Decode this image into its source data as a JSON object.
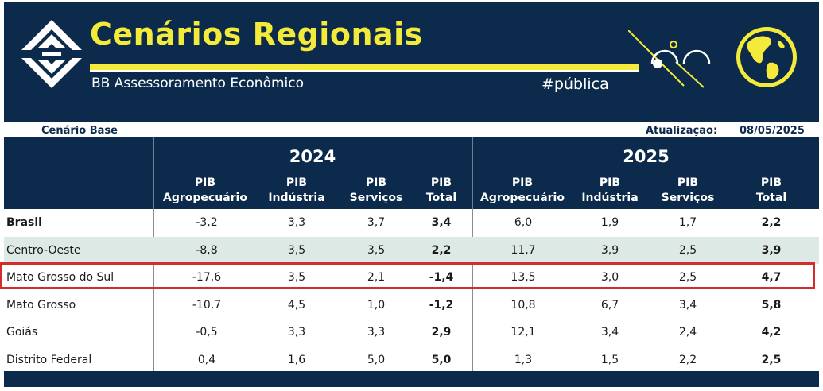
{
  "header": {
    "title": "Cenários Regionais",
    "subtitle": "BB Assessoramento Econômico",
    "hashtag": "#pública",
    "logo_icon": "bb-logo-icon",
    "globe_icon": "globe-icon",
    "accent_color": "#f4ea3a",
    "banner_color": "#0c2a4b"
  },
  "meta": {
    "scenario": "Cenário Base",
    "updated_label": "Atualização:",
    "updated_value": "08/05/2025"
  },
  "table": {
    "years": [
      "2024",
      "2025"
    ],
    "columns": [
      {
        "line1": "PIB",
        "line2": "Agropecuário"
      },
      {
        "line1": "PIB",
        "line2": "Indústria"
      },
      {
        "line1": "PIB",
        "line2": "Serviços"
      },
      {
        "line1": "PIB",
        "line2": "Total"
      },
      {
        "line1": "PIB",
        "line2": "Agropecuário"
      },
      {
        "line1": "PIB",
        "line2": "Indústria"
      },
      {
        "line1": "PIB",
        "line2": "Serviços"
      },
      {
        "line1": "PIB",
        "line2": "Total"
      }
    ],
    "rows": [
      {
        "name": "Brasil",
        "values": [
          "-3,2",
          "3,3",
          "3,7",
          "3,4",
          "6,0",
          "1,9",
          "1,7",
          "2,2"
        ]
      },
      {
        "name": "Centro-Oeste",
        "values": [
          "-8,8",
          "3,5",
          "3,5",
          "2,2",
          "11,7",
          "3,9",
          "2,5",
          "3,9"
        ]
      },
      {
        "name": "Mato Grosso do Sul",
        "values": [
          "-17,6",
          "3,5",
          "2,1",
          "-1,4",
          "13,5",
          "3,0",
          "2,5",
          "4,7"
        ]
      },
      {
        "name": "Mato Grosso",
        "values": [
          "-10,7",
          "4,5",
          "1,0",
          "-1,2",
          "10,8",
          "6,7",
          "3,4",
          "5,8"
        ]
      },
      {
        "name": "Goiás",
        "values": [
          "-0,5",
          "3,3",
          "3,3",
          "2,9",
          "12,1",
          "3,4",
          "2,4",
          "4,2"
        ]
      },
      {
        "name": "Distrito Federal",
        "values": [
          "0,4",
          "1,6",
          "5,0",
          "5,0",
          "1,3",
          "1,5",
          "2,2",
          "2,5"
        ]
      }
    ],
    "highlight_color": "#d52b2b",
    "shaded_row_color": "#dce9e5"
  }
}
